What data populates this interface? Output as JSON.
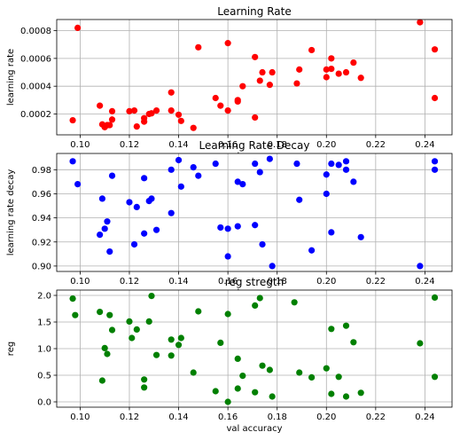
{
  "chart_data": [
    {
      "type": "scatter",
      "title": "Learning Rate",
      "xlabel": "val accuracy",
      "ylabel": "learning rate",
      "color": "#ff0000",
      "grid": true,
      "xlim": [
        0.0905,
        0.251
      ],
      "ylim": [
        5e-05,
        0.00088
      ],
      "xticks": [
        "0.10",
        "0.12",
        "0.14",
        "0.16",
        "0.18",
        "0.20",
        "0.22",
        "0.24"
      ],
      "xtick_values": [
        0.1,
        0.12,
        0.14,
        0.16,
        0.18,
        0.2,
        0.22,
        0.24
      ],
      "yticks": [
        "0.0002",
        "0.0004",
        "0.0006",
        "0.0008"
      ],
      "ytick_values": [
        0.0002,
        0.0004,
        0.0006,
        0.0008
      ],
      "points": [
        {
          "x": 0.097,
          "y": 0.000155
        },
        {
          "x": 0.099,
          "y": 0.00082
        },
        {
          "x": 0.108,
          "y": 0.00026
        },
        {
          "x": 0.109,
          "y": 0.000125
        },
        {
          "x": 0.11,
          "y": 0.000105
        },
        {
          "x": 0.111,
          "y": 0.00012
        },
        {
          "x": 0.112,
          "y": 0.00012
        },
        {
          "x": 0.113,
          "y": 0.00016
        },
        {
          "x": 0.113,
          "y": 0.00022
        },
        {
          "x": 0.12,
          "y": 0.00022
        },
        {
          "x": 0.122,
          "y": 0.000225
        },
        {
          "x": 0.123,
          "y": 0.00011
        },
        {
          "x": 0.126,
          "y": 0.00017
        },
        {
          "x": 0.126,
          "y": 0.000145
        },
        {
          "x": 0.128,
          "y": 0.0002
        },
        {
          "x": 0.129,
          "y": 0.000205
        },
        {
          "x": 0.131,
          "y": 0.000225
        },
        {
          "x": 0.137,
          "y": 0.000225
        },
        {
          "x": 0.137,
          "y": 0.000355
        },
        {
          "x": 0.14,
          "y": 0.000195
        },
        {
          "x": 0.141,
          "y": 0.00015
        },
        {
          "x": 0.146,
          "y": 0.0001
        },
        {
          "x": 0.148,
          "y": 0.00068
        },
        {
          "x": 0.155,
          "y": 0.000315
        },
        {
          "x": 0.157,
          "y": 0.00026
        },
        {
          "x": 0.16,
          "y": 0.000225
        },
        {
          "x": 0.16,
          "y": 0.00071
        },
        {
          "x": 0.164,
          "y": 0.00029
        },
        {
          "x": 0.164,
          "y": 0.0003
        },
        {
          "x": 0.166,
          "y": 0.0004
        },
        {
          "x": 0.171,
          "y": 0.000175
        },
        {
          "x": 0.171,
          "y": 0.00061
        },
        {
          "x": 0.173,
          "y": 0.00044
        },
        {
          "x": 0.174,
          "y": 0.0005
        },
        {
          "x": 0.177,
          "y": 0.00041
        },
        {
          "x": 0.178,
          "y": 0.0005
        },
        {
          "x": 0.188,
          "y": 0.00042
        },
        {
          "x": 0.189,
          "y": 0.00052
        },
        {
          "x": 0.194,
          "y": 0.00066
        },
        {
          "x": 0.2,
          "y": 0.000465
        },
        {
          "x": 0.2,
          "y": 0.00052
        },
        {
          "x": 0.202,
          "y": 0.000525
        },
        {
          "x": 0.202,
          "y": 0.0006
        },
        {
          "x": 0.205,
          "y": 0.00049
        },
        {
          "x": 0.208,
          "y": 0.0005
        },
        {
          "x": 0.211,
          "y": 0.00057
        },
        {
          "x": 0.214,
          "y": 0.00046
        },
        {
          "x": 0.238,
          "y": 0.00086
        },
        {
          "x": 0.244,
          "y": 0.000665
        },
        {
          "x": 0.244,
          "y": 0.000315
        }
      ]
    },
    {
      "type": "scatter",
      "title": "Learning Rate Decay",
      "xlabel": "val accuracy",
      "ylabel": "learning rate decay",
      "color": "#0000ff",
      "grid": true,
      "xlim": [
        0.0905,
        0.251
      ],
      "ylim": [
        0.8955,
        0.9935
      ],
      "xticks": [
        "0.10",
        "0.12",
        "0.14",
        "0.16",
        "0.18",
        "0.20",
        "0.22",
        "0.24"
      ],
      "xtick_values": [
        0.1,
        0.12,
        0.14,
        0.16,
        0.18,
        0.2,
        0.22,
        0.24
      ],
      "yticks": [
        "0.90",
        "0.92",
        "0.94",
        "0.96",
        "0.98"
      ],
      "ytick_values": [
        0.9,
        0.92,
        0.94,
        0.96,
        0.98
      ],
      "points": [
        {
          "x": 0.097,
          "y": 0.987
        },
        {
          "x": 0.099,
          "y": 0.968
        },
        {
          "x": 0.108,
          "y": 0.926
        },
        {
          "x": 0.109,
          "y": 0.956
        },
        {
          "x": 0.11,
          "y": 0.931
        },
        {
          "x": 0.111,
          "y": 0.937
        },
        {
          "x": 0.112,
          "y": 0.912
        },
        {
          "x": 0.113,
          "y": 0.975
        },
        {
          "x": 0.12,
          "y": 0.953
        },
        {
          "x": 0.122,
          "y": 0.918
        },
        {
          "x": 0.123,
          "y": 0.949
        },
        {
          "x": 0.126,
          "y": 0.927
        },
        {
          "x": 0.126,
          "y": 0.973
        },
        {
          "x": 0.128,
          "y": 0.954
        },
        {
          "x": 0.129,
          "y": 0.956
        },
        {
          "x": 0.131,
          "y": 0.93
        },
        {
          "x": 0.137,
          "y": 0.944
        },
        {
          "x": 0.137,
          "y": 0.98
        },
        {
          "x": 0.14,
          "y": 0.988
        },
        {
          "x": 0.141,
          "y": 0.966
        },
        {
          "x": 0.146,
          "y": 0.982
        },
        {
          "x": 0.148,
          "y": 0.975
        },
        {
          "x": 0.155,
          "y": 0.985
        },
        {
          "x": 0.157,
          "y": 0.932
        },
        {
          "x": 0.16,
          "y": 0.931
        },
        {
          "x": 0.16,
          "y": 0.908
        },
        {
          "x": 0.164,
          "y": 0.933
        },
        {
          "x": 0.164,
          "y": 0.97
        },
        {
          "x": 0.166,
          "y": 0.968
        },
        {
          "x": 0.171,
          "y": 0.985
        },
        {
          "x": 0.171,
          "y": 0.934
        },
        {
          "x": 0.173,
          "y": 0.978
        },
        {
          "x": 0.174,
          "y": 0.918
        },
        {
          "x": 0.177,
          "y": 0.989
        },
        {
          "x": 0.178,
          "y": 0.9
        },
        {
          "x": 0.188,
          "y": 0.985
        },
        {
          "x": 0.189,
          "y": 0.955
        },
        {
          "x": 0.194,
          "y": 0.913
        },
        {
          "x": 0.2,
          "y": 0.976
        },
        {
          "x": 0.2,
          "y": 0.96
        },
        {
          "x": 0.202,
          "y": 0.985
        },
        {
          "x": 0.202,
          "y": 0.928
        },
        {
          "x": 0.205,
          "y": 0.984
        },
        {
          "x": 0.208,
          "y": 0.987
        },
        {
          "x": 0.208,
          "y": 0.98
        },
        {
          "x": 0.211,
          "y": 0.97
        },
        {
          "x": 0.214,
          "y": 0.924
        },
        {
          "x": 0.238,
          "y": 0.9
        },
        {
          "x": 0.244,
          "y": 0.987
        },
        {
          "x": 0.244,
          "y": 0.98
        }
      ]
    },
    {
      "type": "scatter",
      "title": "reg stregth",
      "xlabel": "val accuracy",
      "ylabel": "reg",
      "color": "#008000",
      "grid": true,
      "xlim": [
        0.0905,
        0.251
      ],
      "ylim": [
        -0.1,
        2.1
      ],
      "xticks": [
        "0.10",
        "0.12",
        "0.14",
        "0.16",
        "0.18",
        "0.20",
        "0.22",
        "0.24"
      ],
      "xtick_values": [
        0.1,
        0.12,
        0.14,
        0.16,
        0.18,
        0.2,
        0.22,
        0.24
      ],
      "yticks": [
        "0.0",
        "0.5",
        "1.0",
        "1.5",
        "2.0"
      ],
      "ytick_values": [
        0.0,
        0.5,
        1.0,
        1.5,
        2.0
      ],
      "points": [
        {
          "x": 0.097,
          "y": 1.94
        },
        {
          "x": 0.098,
          "y": 1.63
        },
        {
          "x": 0.108,
          "y": 1.69
        },
        {
          "x": 0.109,
          "y": 0.4
        },
        {
          "x": 0.11,
          "y": 1.01
        },
        {
          "x": 0.111,
          "y": 0.9
        },
        {
          "x": 0.112,
          "y": 1.63
        },
        {
          "x": 0.113,
          "y": 1.35
        },
        {
          "x": 0.12,
          "y": 1.51
        },
        {
          "x": 0.121,
          "y": 1.2
        },
        {
          "x": 0.123,
          "y": 1.36
        },
        {
          "x": 0.126,
          "y": 0.42
        },
        {
          "x": 0.126,
          "y": 0.27
        },
        {
          "x": 0.128,
          "y": 1.51
        },
        {
          "x": 0.129,
          "y": 1.99
        },
        {
          "x": 0.131,
          "y": 0.88
        },
        {
          "x": 0.137,
          "y": 1.17
        },
        {
          "x": 0.137,
          "y": 0.87
        },
        {
          "x": 0.14,
          "y": 1.07
        },
        {
          "x": 0.141,
          "y": 1.2
        },
        {
          "x": 0.146,
          "y": 0.55
        },
        {
          "x": 0.148,
          "y": 1.7
        },
        {
          "x": 0.155,
          "y": 0.2
        },
        {
          "x": 0.157,
          "y": 1.11
        },
        {
          "x": 0.16,
          "y": 1.65
        },
        {
          "x": 0.16,
          "y": 0.0
        },
        {
          "x": 0.164,
          "y": 0.81
        },
        {
          "x": 0.164,
          "y": 0.25
        },
        {
          "x": 0.166,
          "y": 0.49
        },
        {
          "x": 0.171,
          "y": 1.81
        },
        {
          "x": 0.171,
          "y": 0.18
        },
        {
          "x": 0.173,
          "y": 1.95
        },
        {
          "x": 0.174,
          "y": 0.68
        },
        {
          "x": 0.177,
          "y": 0.6
        },
        {
          "x": 0.178,
          "y": 0.1
        },
        {
          "x": 0.187,
          "y": 1.87
        },
        {
          "x": 0.189,
          "y": 0.55
        },
        {
          "x": 0.194,
          "y": 0.46
        },
        {
          "x": 0.2,
          "y": 0.63
        },
        {
          "x": 0.202,
          "y": 1.37
        },
        {
          "x": 0.202,
          "y": 0.15
        },
        {
          "x": 0.205,
          "y": 0.47
        },
        {
          "x": 0.208,
          "y": 1.43
        },
        {
          "x": 0.208,
          "y": 0.1
        },
        {
          "x": 0.211,
          "y": 1.12
        },
        {
          "x": 0.214,
          "y": 0.17
        },
        {
          "x": 0.238,
          "y": 1.1
        },
        {
          "x": 0.244,
          "y": 1.96
        },
        {
          "x": 0.244,
          "y": 0.47
        }
      ]
    }
  ]
}
